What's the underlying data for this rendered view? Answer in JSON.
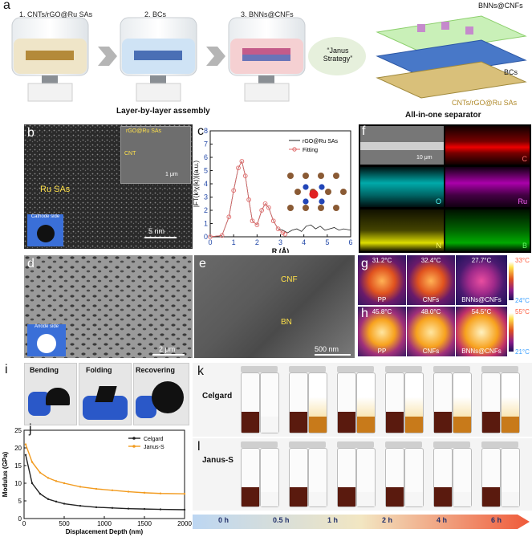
{
  "panel_a": {
    "label": "a",
    "steps": [
      "1. CNTs/rGO@Ru SAs",
      "2. BCs",
      "3. BNNs@CNFs"
    ],
    "caption_left": "Layer-by-layer assembly",
    "caption_right": "All-in-one separator",
    "janus": "“Janus Strategy”",
    "layers": [
      "BNNs@CNFs",
      "BCs",
      "CNTs/rGO@Ru SAs"
    ]
  },
  "panel_b": {
    "label": "b",
    "inset_labels": [
      "rGO@Ru SAs",
      "CNT"
    ],
    "inset_scale": "1 μm",
    "main_label": "Ru SAs",
    "scale": "5 nm",
    "side": "Cathode side"
  },
  "panel_c": {
    "label": "c"
  },
  "chart_data": {
    "type": "line",
    "xlabel": "R (Å)",
    "ylabel": "|FT(k³χ(k))|(a.u.)",
    "xlim": [
      0,
      6
    ],
    "ylim": [
      0,
      8
    ],
    "xticks": [
      0,
      1,
      2,
      3,
      4,
      5,
      6
    ],
    "yticks": [
      0,
      1,
      2,
      3,
      4,
      5,
      6,
      7,
      8
    ],
    "series": [
      {
        "name": "rGO@Ru SAs",
        "color": "#222222",
        "x": [
          0,
          0.5,
          0.8,
          1.0,
          1.2,
          1.35,
          1.5,
          1.65,
          1.8,
          2.0,
          2.2,
          2.35,
          2.5,
          2.7,
          2.9,
          3.1,
          3.3,
          3.5,
          3.7,
          3.9,
          4.1,
          4.3,
          4.5,
          4.7,
          4.9,
          5.1,
          5.3,
          5.5,
          5.7,
          6.0
        ],
        "y": [
          0,
          0.1,
          1.5,
          3.5,
          5.2,
          5.7,
          4.6,
          2.8,
          1.2,
          0.9,
          2.0,
          2.5,
          2.2,
          1.2,
          0.6,
          0.5,
          0.3,
          0.5,
          0.6,
          0.4,
          0.8,
          0.9,
          0.6,
          0.8,
          0.5,
          0.6,
          0.7,
          0.5,
          0.6,
          0.5
        ]
      },
      {
        "name": "Fitting",
        "color": "#e06a6a",
        "x": [
          0,
          0.5,
          0.8,
          1.0,
          1.2,
          1.35,
          1.5,
          1.65,
          1.8,
          2.0,
          2.2,
          2.35,
          2.5,
          2.7,
          2.9,
          3.1,
          3.2
        ],
        "y": [
          0,
          0.1,
          1.5,
          3.5,
          5.2,
          5.7,
          4.6,
          2.8,
          1.2,
          0.9,
          2.0,
          2.5,
          2.2,
          1.2,
          0.6,
          0.3,
          0.2
        ]
      }
    ]
  },
  "panel_f": {
    "label": "f",
    "scale": "10 μm",
    "elements": [
      "C",
      "O",
      "Ru",
      "N",
      "B"
    ]
  },
  "panel_d": {
    "label": "d",
    "scale": "2 μm",
    "side": "Anode side"
  },
  "panel_e": {
    "label": "e",
    "labels": [
      "CNF",
      "BN"
    ],
    "scale": "500 nm"
  },
  "panel_g": {
    "label": "g",
    "temps": [
      "31.2°C",
      "32.4°C",
      "27.7°C"
    ],
    "names": [
      "PP",
      "CNFs",
      "BNNs@CNFs"
    ],
    "scale_max": "33°C",
    "scale_min": "24°C"
  },
  "panel_h": {
    "label": "h",
    "temps": [
      "45.8°C",
      "48.0°C",
      "54.5°C"
    ],
    "names": [
      "PP",
      "CNFs",
      "BNNs@CNFs"
    ],
    "scale_max": "55°C",
    "scale_min": "21°C"
  },
  "panel_i": {
    "label": "i",
    "photos": [
      "Bending",
      "Folding",
      "Recovering"
    ]
  },
  "panel_j": {
    "label": "j",
    "xlabel": "Displacement Depth (nm)",
    "ylabel": "Modulus (GPa)",
    "xlim": [
      0,
      2000
    ],
    "ylim": [
      0,
      25
    ],
    "xticks": [
      0,
      500,
      1000,
      1500,
      2000
    ],
    "yticks": [
      0,
      5,
      10,
      15,
      20,
      25
    ],
    "series": [
      {
        "name": "Celgard",
        "color": "#222222",
        "x": [
          20,
          100,
          200,
          300,
          400,
          500,
          700,
          900,
          1100,
          1300,
          1500,
          1700,
          2000
        ],
        "y": [
          18,
          10,
          7,
          5.5,
          4.8,
          4.2,
          3.6,
          3.2,
          3.0,
          2.8,
          2.7,
          2.6,
          2.5
        ]
      },
      {
        "name": "Janus-S",
        "color": "#f29b1f",
        "x": [
          20,
          100,
          200,
          300,
          400,
          500,
          700,
          900,
          1100,
          1300,
          1500,
          1700,
          2000
        ],
        "y": [
          21,
          16,
          13,
          11.5,
          10.6,
          10,
          9,
          8.4,
          8,
          7.6,
          7.3,
          7.1,
          7.0
        ]
      }
    ]
  },
  "panel_k": {
    "label": "k",
    "row_label": "Celgard"
  },
  "panel_l": {
    "label": "l",
    "row_label": "Janus-S"
  },
  "timeline": {
    "labels": [
      "0 h",
      "0.5 h",
      "1 h",
      "2 h",
      "4 h",
      "6 h"
    ]
  }
}
